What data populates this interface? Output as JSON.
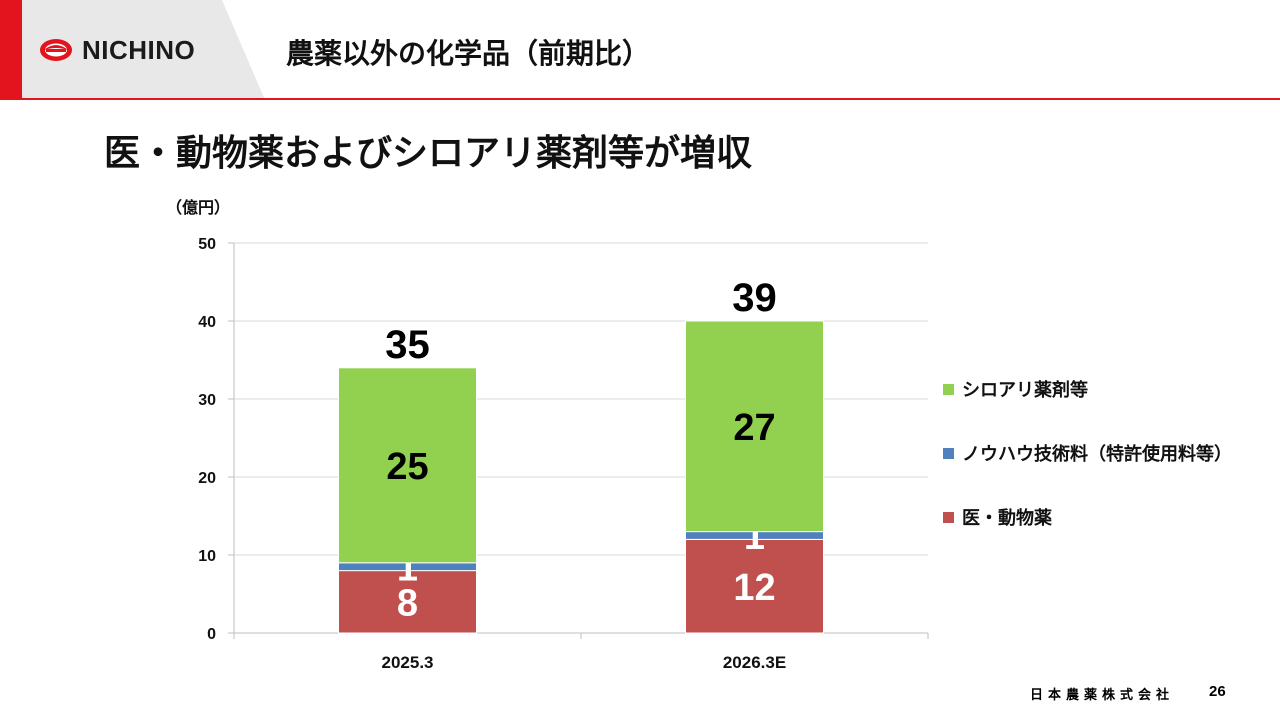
{
  "header": {
    "brand": "NICHINO",
    "title": "農薬以外の化学品（前期比）"
  },
  "headline": "医・動物薬およびシロアリ薬剤等が増収",
  "colors": {
    "accent": "#e3141e",
    "termite": "#92d050",
    "knowhow": "#4f81bd",
    "medical": "#c0504d"
  },
  "chart_data": {
    "type": "bar",
    "stacked": true,
    "unit_label": "（億円）",
    "categories": [
      "2025.3",
      "2026.3E"
    ],
    "series": [
      {
        "name": "医・動物薬",
        "values": [
          8,
          12
        ],
        "color": "#c0504d",
        "label_color": "#ffffff"
      },
      {
        "name": "ノウハウ技術料（特許使用料等）",
        "values": [
          1,
          1
        ],
        "color": "#4f81bd",
        "label_color": "#ffffff"
      },
      {
        "name": "シロアリ薬剤等",
        "values": [
          25,
          27
        ],
        "color": "#92d050",
        "label_color": "#000000"
      }
    ],
    "totals": [
      35,
      39
    ],
    "ylim": [
      0,
      50
    ],
    "yticks": [
      0,
      10,
      20,
      30,
      40,
      50
    ],
    "grid": true,
    "legend": "right"
  },
  "legend": [
    {
      "label": "シロアリ薬剤等",
      "color": "#92d050"
    },
    {
      "label": "ノウハウ技術料（特許使用料等）",
      "color": "#4f81bd"
    },
    {
      "label": "医・動物薬",
      "color": "#c0504d"
    }
  ],
  "footer": {
    "company": "日本農薬株式会社",
    "page": "26"
  }
}
